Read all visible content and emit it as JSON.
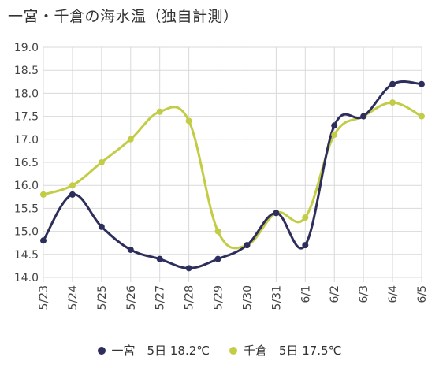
{
  "title": "一宮・千倉の海水温（独自計測）",
  "chart_data": {
    "type": "line",
    "categories": [
      "5/23",
      "5/24",
      "5/25",
      "5/26",
      "5/27",
      "5/28",
      "5/29",
      "5/30",
      "5/31",
      "6/1",
      "6/2",
      "6/3",
      "6/4",
      "6/5"
    ],
    "ylim": [
      14.0,
      19.0
    ],
    "yticks": [
      "14.0",
      "14.5",
      "15.0",
      "15.5",
      "16.0",
      "16.5",
      "17.0",
      "17.5",
      "18.0",
      "18.5",
      "19.0"
    ],
    "grid": true,
    "legend_position": "bottom",
    "series": [
      {
        "name": "一宮",
        "legend_label": "一宮　5日 18.2℃",
        "color": "#2e2e5c",
        "values": [
          14.8,
          15.8,
          15.1,
          14.6,
          14.4,
          14.2,
          14.4,
          14.7,
          15.4,
          14.7,
          17.3,
          17.5,
          18.2,
          18.2
        ]
      },
      {
        "name": "千倉",
        "legend_label": "千倉　5日 17.5℃",
        "color": "#c2cc45",
        "values": [
          15.8,
          16.0,
          16.5,
          17.0,
          17.6,
          17.4,
          15.0,
          14.7,
          15.4,
          15.3,
          17.1,
          17.5,
          17.8,
          17.5
        ]
      }
    ]
  }
}
